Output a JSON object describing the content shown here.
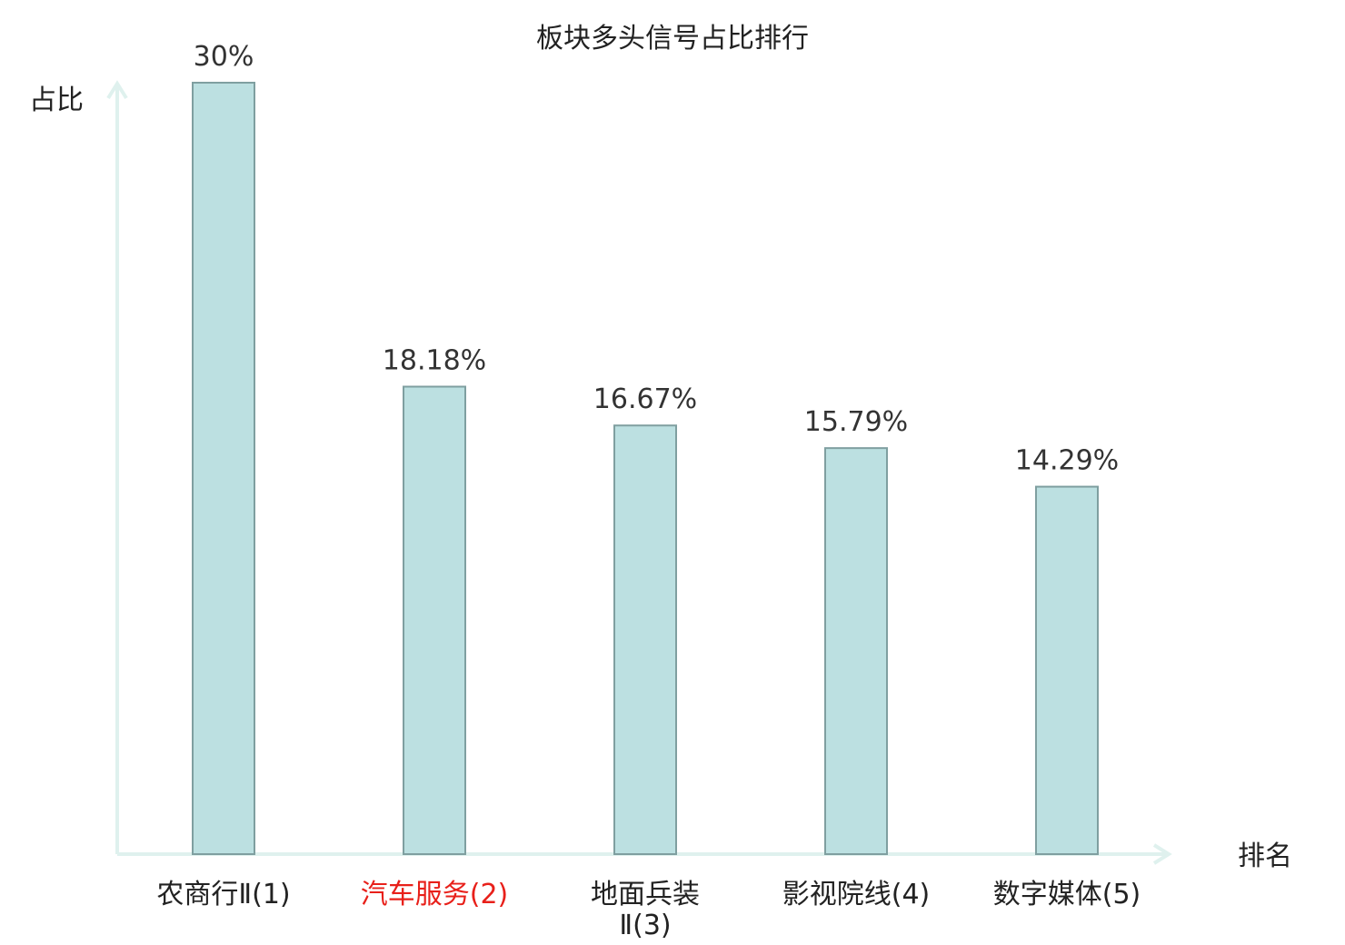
{
  "chart_data": {
    "type": "bar",
    "title": "板块多头信号占比排行",
    "ylabel": "占比",
    "xlabel": "排名",
    "categories": [
      "农商行Ⅱ(1)",
      "汽车服务(2)",
      "地面兵装Ⅱ(3)",
      "影视院线(4)",
      "数字媒体(5)"
    ],
    "category_display": [
      [
        "农商行Ⅱ(1)"
      ],
      [
        "汽车服务(2)"
      ],
      [
        "地面兵装",
        "Ⅱ(3)"
      ],
      [
        "影视院线(4)"
      ],
      [
        "数字媒体(5)"
      ]
    ],
    "highlight_index": 1,
    "values": [
      30,
      18.18,
      16.67,
      15.79,
      14.29
    ],
    "value_labels": [
      "30%",
      "18.18%",
      "16.67%",
      "15.79%",
      "14.29%"
    ],
    "ylim": [
      0,
      30
    ],
    "grid": false,
    "legend": "none",
    "colors": {
      "bar_fill": "#bce0e1",
      "bar_stroke": "#7f9fa0",
      "axis": "#dff1ee",
      "highlight_text": "#e8201a",
      "text": "#222222"
    }
  }
}
